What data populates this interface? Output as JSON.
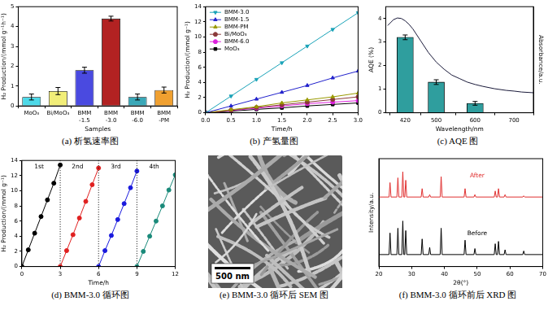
{
  "chart_data": [
    {
      "type": "bar",
      "caption": "(a)  析氢速率图",
      "x_label": "Samples",
      "y_label": "H₂ Production/(mmol g⁻¹h⁻¹)",
      "categories": [
        "MoO₃",
        "Bi/MoO₃",
        "BMM-1.5",
        "BMM-3.0",
        "BMM-6.0",
        "BMM-PM"
      ],
      "values": [
        0.45,
        0.75,
        1.8,
        4.4,
        0.45,
        0.8
      ],
      "errors": [
        0.15,
        0.18,
        0.15,
        0.12,
        0.15,
        0.15
      ],
      "colors": [
        "#4dd9e8",
        "#f2ee78",
        "#4a4ae0",
        "#b22222",
        "#3aa8b8",
        "#f0a030"
      ],
      "ylim": [
        0,
        5
      ],
      "yticks": [
        0,
        1,
        2,
        3,
        4,
        5
      ],
      "grid": false
    },
    {
      "type": "line",
      "caption": "(b) 产氢量图",
      "x_label": "Time/h",
      "y_label": "H₂ Production/(mmol g⁻¹)",
      "x": [
        0,
        0.5,
        1,
        1.5,
        2,
        2.5,
        3
      ],
      "series": [
        {
          "name": "BMM-3.0",
          "color": "#1aa3b8",
          "marker": "triangle-down",
          "values": [
            0,
            2.2,
            4.4,
            6.6,
            8.8,
            11.0,
            13.2
          ]
        },
        {
          "name": "BMM-1.5",
          "color": "#2222cc",
          "marker": "triangle",
          "values": [
            0,
            0.9,
            1.8,
            2.7,
            3.6,
            4.6,
            5.5
          ]
        },
        {
          "name": "BMM-PM",
          "color": "#999900",
          "marker": "triangle",
          "values": [
            0,
            0.4,
            0.8,
            1.3,
            1.7,
            2.1,
            2.6
          ]
        },
        {
          "name": "Bi/MoO₃",
          "color": "#8b3a3a",
          "marker": "circle",
          "values": [
            0,
            0.35,
            0.7,
            1.05,
            1.4,
            1.75,
            2.1
          ]
        },
        {
          "name": "BMM-6.0",
          "color": "#dd22dd",
          "marker": "circle",
          "values": [
            0,
            0.3,
            0.6,
            0.9,
            1.2,
            1.4,
            1.6
          ]
        },
        {
          "name": "MoO₃",
          "color": "#000000",
          "marker": "square",
          "values": [
            0,
            0.2,
            0.45,
            0.65,
            0.9,
            1.1,
            1.3
          ]
        }
      ],
      "xlim": [
        0,
        3
      ],
      "xticks": [
        {
          "value": 0,
          "label": "0.0"
        },
        {
          "value": 0.5,
          "label": "0.5"
        },
        {
          "value": 1,
          "label": "1.0"
        },
        {
          "value": 1.5,
          "label": "1.5"
        },
        {
          "value": 2,
          "label": "2.0"
        },
        {
          "value": 2.5,
          "label": "2.5"
        },
        {
          "value": 3,
          "label": "3.0"
        }
      ],
      "ylim": [
        0,
        14
      ],
      "yticks": [
        0,
        2,
        4,
        6,
        8,
        10,
        12,
        14
      ],
      "legend": "upper left",
      "grid": false
    },
    {
      "type": "bar",
      "caption": "(c) AQE 图",
      "x_label": "Wavelength/nm",
      "y_label": "AQE (%)",
      "y2_label": "Absorbance/a.u.",
      "series": [
        {
          "type": "bar",
          "color": "#2f9e9e",
          "x": [
            420,
            500,
            600
          ],
          "values": [
            3.2,
            1.3,
            0.4
          ],
          "errors": [
            0.1,
            0.1,
            0.08
          ]
        },
        {
          "type": "line",
          "axis": "y2",
          "color": "#1a1a3a",
          "x": [
            375,
            390,
            400,
            410,
            420,
            430,
            440,
            450,
            460,
            480,
            500,
            520,
            540,
            560,
            580,
            600,
            620,
            650,
            680,
            700,
            720,
            750
          ],
          "values": [
            3.7,
            3.95,
            4.02,
            4.0,
            3.9,
            3.75,
            3.55,
            3.3,
            3.05,
            2.55,
            2.15,
            1.85,
            1.6,
            1.45,
            1.3,
            1.2,
            1.12,
            1.02,
            0.95,
            0.92,
            0.88,
            0.85
          ]
        }
      ],
      "xlim": [
        370,
        750
      ],
      "xticks": [
        420,
        500,
        600,
        700
      ],
      "ylim": [
        0,
        4.5
      ],
      "yticks": [
        0,
        1,
        2,
        3,
        4
      ],
      "y2lim": [
        0,
        4.5
      ],
      "y2ticks": [],
      "grid": false
    },
    {
      "type": "line",
      "caption": "(d) BMM-3.0 循环图",
      "x_label": "Time/h",
      "y_label": "H₂ Production/(mmol g⁻¹)",
      "series": [
        {
          "name": "1st",
          "color": "#000000",
          "marker": "circle",
          "x": [
            0,
            0.5,
            1,
            1.5,
            2,
            2.5,
            3
          ],
          "values": [
            0,
            2.2,
            4.4,
            6.6,
            8.8,
            11.0,
            13.4
          ]
        },
        {
          "name": "2nd",
          "color": "#e02020",
          "marker": "circle",
          "x": [
            3,
            3.5,
            4,
            4.5,
            5,
            5.5,
            6
          ],
          "values": [
            0,
            2.1,
            4.2,
            6.4,
            8.6,
            10.8,
            13.0
          ]
        },
        {
          "name": "3rd",
          "color": "#1a1add",
          "marker": "circle",
          "x": [
            6,
            6.5,
            7,
            7.5,
            8,
            8.5,
            9
          ],
          "values": [
            0,
            2.1,
            4.1,
            6.2,
            8.3,
            10.4,
            12.6
          ]
        },
        {
          "name": "4th",
          "color": "#1a8a7a",
          "marker": "circle",
          "x": [
            9,
            9.5,
            10,
            10.5,
            11,
            11.5,
            12
          ],
          "values": [
            0,
            2.0,
            4.0,
            6.0,
            8.0,
            10.1,
            12.1
          ]
        }
      ],
      "vlines": [
        3,
        6,
        9
      ],
      "xlim": [
        0,
        12
      ],
      "xticks": [
        0,
        3,
        6,
        9,
        12
      ],
      "ylim": [
        0,
        14
      ],
      "yticks": [
        0,
        2,
        4,
        6,
        8,
        10,
        12,
        14
      ],
      "grid": false
    },
    {
      "type": "image",
      "caption": "(e) BMM-3.0 循环后 SEM 图",
      "scale_bar": "500 nm"
    },
    {
      "type": "line",
      "caption": "(f) BMM-3.0 循环前后 XRD 图",
      "x_label": "2θ(°)",
      "y_label": "Intensity/a.u.",
      "x": [
        20,
        23.1,
        23.4,
        23.7,
        25.5,
        25.8,
        26.1,
        27.0,
        27.3,
        27.6,
        27.9,
        28.2,
        28.5,
        32.9,
        33.2,
        33.5,
        35.2,
        35.5,
        35.8,
        38.7,
        39.0,
        39.3,
        46.0,
        46.3,
        46.6,
        49.0,
        49.3,
        49.6,
        55.2,
        55.5,
        55.8,
        56.2,
        56.5,
        56.8,
        58.2,
        58.5,
        58.8,
        63.9,
        64.2,
        64.5,
        70
      ],
      "series": [
        {
          "name": "After",
          "color": "#e03030",
          "values": [
            5.8,
            5.8,
            7.0,
            5.8,
            5.8,
            7.4,
            5.8,
            5.8,
            7.9,
            5.8,
            5.8,
            7.2,
            5.8,
            5.8,
            6.5,
            5.8,
            5.8,
            6.0,
            5.8,
            5.8,
            7.5,
            5.8,
            5.8,
            6.5,
            5.8,
            5.8,
            6.0,
            5.8,
            5.8,
            6.3,
            5.8,
            5.8,
            6.5,
            5.8,
            5.8,
            6.0,
            5.8,
            5.8,
            5.9,
            5.8,
            5.8
          ]
        },
        {
          "name": "Before",
          "color": "#000000",
          "values": [
            1.0,
            1.0,
            2.8,
            1.0,
            1.0,
            3.2,
            1.0,
            1.0,
            3.8,
            1.0,
            1.0,
            3.0,
            1.0,
            1.0,
            2.3,
            1.0,
            1.0,
            1.6,
            1.0,
            1.0,
            3.2,
            1.0,
            1.0,
            2.2,
            1.0,
            1.0,
            1.5,
            1.0,
            1.0,
            1.9,
            1.0,
            1.0,
            2.1,
            1.0,
            1.0,
            1.4,
            1.0,
            1.0,
            1.3,
            1.0,
            1.0
          ]
        }
      ],
      "xlim": [
        20,
        70
      ],
      "xticks": [
        20,
        30,
        40,
        50,
        60,
        70
      ],
      "ylim": [
        0,
        9
      ],
      "yticks": [],
      "tick_labels": "x",
      "grid": false
    }
  ]
}
